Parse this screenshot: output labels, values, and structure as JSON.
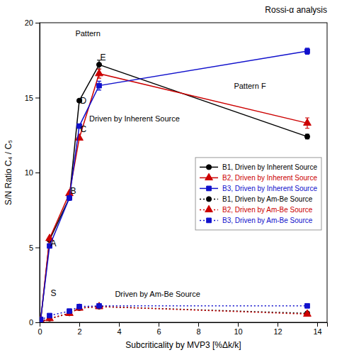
{
  "chart_data": {
    "type": "line",
    "title": "Rossi-α analysis",
    "xlabel": "Subcriticality by MVP3 [%Δk/k]",
    "ylabel": "S/N Ratio C₄ / C₅",
    "xlim": [
      0,
      14.5
    ],
    "ylim": [
      0,
      20
    ],
    "xticks": [
      0,
      2,
      4,
      6,
      8,
      10,
      12,
      14
    ],
    "yticks": [
      0,
      5,
      10,
      15,
      20
    ],
    "grid": false,
    "legend": "right",
    "x": [
      0.05,
      0.5,
      1.5,
      2.0,
      3.0,
      13.5
    ],
    "series": [
      {
        "name": "B1, Driven by Inherent Source",
        "color": "#000000",
        "marker": "circle",
        "line_style": "solid",
        "values": [
          0.1,
          5.5,
          8.3,
          14.8,
          17.2,
          12.4
        ],
        "errors": [
          0,
          0,
          0,
          0,
          0.3,
          0.15
        ]
      },
      {
        "name": "B2, Driven by Inherent Source",
        "color": "#cc0000",
        "marker": "triangle",
        "line_style": "solid",
        "values": [
          0.15,
          5.6,
          8.6,
          12.3,
          16.6,
          13.3
        ],
        "errors": [
          0,
          0,
          0,
          0,
          0.3,
          0.35
        ]
      },
      {
        "name": "B3, Driven by Inherent Source",
        "color": "#1010cc",
        "marker": "square",
        "line_style": "solid",
        "values": [
          0.2,
          5.1,
          8.3,
          13.1,
          15.8,
          18.1
        ],
        "errors": [
          0,
          0,
          0,
          0,
          0.3,
          0.2
        ]
      },
      {
        "name": "B1, Driven by Am-Be Source",
        "color": "#000000",
        "marker": "circle",
        "line_style": "dotted",
        "values": [
          0.05,
          0.25,
          0.6,
          0.95,
          1.05,
          0.6
        ],
        "errors": [
          0,
          0,
          0,
          0,
          0,
          0.1
        ]
      },
      {
        "name": "B2, Driven by Am-Be Source",
        "color": "#cc0000",
        "marker": "triangle",
        "line_style": "dotted",
        "values": [
          0.05,
          0.25,
          0.6,
          0.95,
          1.05,
          0.55
        ],
        "errors": [
          0,
          0,
          0,
          0,
          0,
          0.08
        ]
      },
      {
        "name": "B3, Driven by Am-Be Source",
        "color": "#1010cc",
        "marker": "square",
        "line_style": "dotted",
        "values": [
          0.15,
          0.45,
          0.75,
          1.05,
          1.1,
          1.1
        ],
        "errors": [
          0,
          0,
          0,
          0,
          0,
          0.12
        ]
      }
    ],
    "annotations": [
      {
        "text": "S",
        "x": 0.55,
        "y": 1.65
      },
      {
        "text": "A",
        "x": 0.55,
        "y": 5.0
      },
      {
        "text": "B",
        "x": 1.55,
        "y": 8.5
      },
      {
        "text": "C",
        "x": 2.05,
        "y": 12.6
      },
      {
        "text": "D",
        "x": 2.05,
        "y": 14.5
      },
      {
        "text": "E",
        "x": 3.05,
        "y": 17.4
      },
      {
        "text": "Pattern",
        "x": 1.8,
        "y": 19.0
      },
      {
        "text": "Pattern F",
        "x": 9.8,
        "y": 15.5
      },
      {
        "text": "Driven by Inherent Source",
        "x": 2.5,
        "y": 13.3
      },
      {
        "text": "Driven by Am-Be Source",
        "x": 3.8,
        "y": 1.6
      }
    ]
  }
}
